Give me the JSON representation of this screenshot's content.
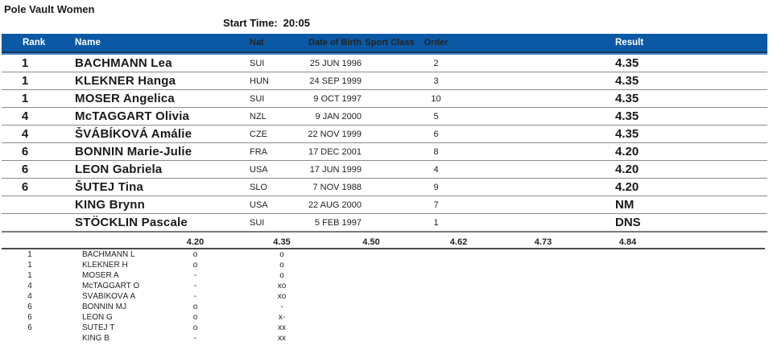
{
  "page": {
    "title": "Pole Vault Women",
    "start_time_label": "Start Time:",
    "start_time_value": "20:05"
  },
  "colors": {
    "header_bg": "#0b59a4",
    "header_text": "#ffffff",
    "header_dark_edge": "#12375c",
    "header_light_stripe": "#4d86c5",
    "row_divider": "#8c8c8c"
  },
  "results_table": {
    "headers": {
      "rank": "Rank",
      "name": "Name",
      "nat": "Nat",
      "dob": "Date of Birth",
      "sport_class": "Sport Class",
      "order": "Order",
      "result": "Result"
    },
    "rows": [
      {
        "rank": "1",
        "name": "BACHMANN Lea",
        "nat": "SUI",
        "dob": "25 JUN 1996",
        "sport_class": "",
        "order": "2",
        "result": "4.35"
      },
      {
        "rank": "1",
        "name": "KLEKNER Hanga",
        "nat": "HUN",
        "dob": "24 SEP 1999",
        "sport_class": "",
        "order": "3",
        "result": "4.35"
      },
      {
        "rank": "1",
        "name": "MOSER Angelica",
        "nat": "SUI",
        "dob": "9 OCT 1997",
        "sport_class": "",
        "order": "10",
        "result": "4.35"
      },
      {
        "rank": "4",
        "name": "McTAGGART Olivia",
        "nat": "NZL",
        "dob": "9 JAN 2000",
        "sport_class": "",
        "order": "5",
        "result": "4.35"
      },
      {
        "rank": "4",
        "name": "ŠVÁBÍKOVÁ Amálie",
        "nat": "CZE",
        "dob": "22 NOV 1999",
        "sport_class": "",
        "order": "6",
        "result": "4.35"
      },
      {
        "rank": "6",
        "name": "BONNIN Marie-Julie",
        "nat": "FRA",
        "dob": "17 DEC 2001",
        "sport_class": "",
        "order": "8",
        "result": "4.20"
      },
      {
        "rank": "6",
        "name": "LEON Gabriela",
        "nat": "USA",
        "dob": "17 JUN 1999",
        "sport_class": "",
        "order": "4",
        "result": "4.20"
      },
      {
        "rank": "6",
        "name": "ŠUTEJ Tina",
        "nat": "SLO",
        "dob": "7 NOV 1988",
        "sport_class": "",
        "order": "9",
        "result": "4.20"
      },
      {
        "rank": "",
        "name": "KING Brynn",
        "nat": "USA",
        "dob": "22 AUG 2000",
        "sport_class": "",
        "order": "7",
        "result": "NM"
      },
      {
        "rank": "",
        "name": "STÖCKLIN Pascale",
        "nat": "SUI",
        "dob": "5 FEB 1997",
        "sport_class": "",
        "order": "1",
        "result": "DNS"
      }
    ]
  },
  "attempts_table": {
    "heights": [
      "4.20",
      "4.35",
      "4.50",
      "4.62",
      "4.73",
      "4.84"
    ],
    "rows": [
      {
        "rank": "1",
        "name": "BACHMANN L",
        "attempts": [
          "o",
          "o",
          "",
          "",
          "",
          ""
        ]
      },
      {
        "rank": "1",
        "name": "KLEKNER H",
        "attempts": [
          "o",
          "o",
          "",
          "",
          "",
          ""
        ]
      },
      {
        "rank": "1",
        "name": "MOSER A",
        "attempts": [
          "-",
          "o",
          "",
          "",
          "",
          ""
        ]
      },
      {
        "rank": "4",
        "name": "McTAGGART O",
        "attempts": [
          "-",
          "xo",
          "",
          "",
          "",
          ""
        ]
      },
      {
        "rank": "4",
        "name": "ŠVÁBÍKOVÁ A",
        "attempts": [
          "-",
          "xo",
          "",
          "",
          "",
          ""
        ]
      },
      {
        "rank": "6",
        "name": "BONNIN MJ",
        "attempts": [
          "o",
          "-",
          "",
          "",
          "",
          ""
        ]
      },
      {
        "rank": "6",
        "name": "LEON G",
        "attempts": [
          "o",
          "x-",
          "",
          "",
          "",
          ""
        ]
      },
      {
        "rank": "6",
        "name": "ŠUTEJ T",
        "attempts": [
          "o",
          "xx",
          "",
          "",
          "",
          ""
        ]
      },
      {
        "rank": "",
        "name": "KING B",
        "attempts": [
          "-",
          "xx",
          "",
          "",
          "",
          ""
        ]
      }
    ]
  }
}
